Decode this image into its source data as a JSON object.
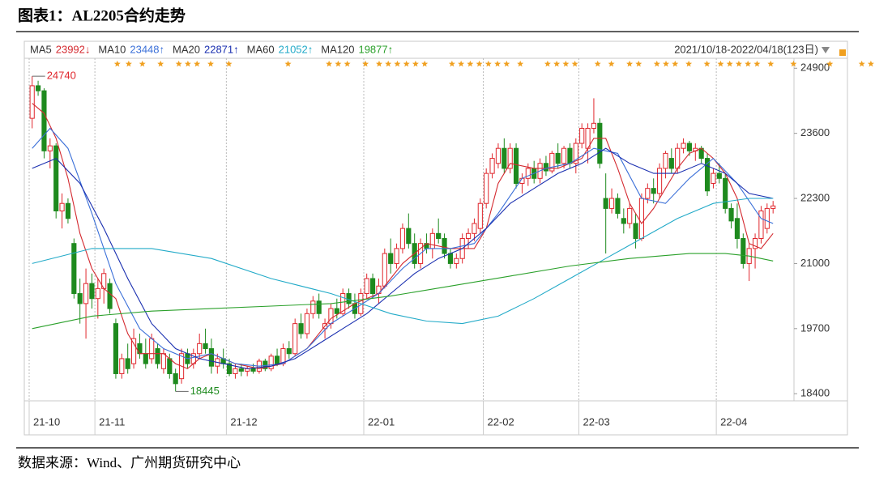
{
  "chart_data": {
    "type": "candlestick",
    "title": "图表1：AL2205合约走势",
    "source": "数据来源：Wind、广州期货研究中心",
    "date_range": "2021/10/18-2022/04/18(123日)",
    "up_color": "#e0262c",
    "down_color": "#1e8a1e",
    "ylim": [
      18290,
      25050
    ],
    "yticks": [
      18400,
      19700,
      21000,
      22300,
      23600,
      24900
    ],
    "xlim": [
      -0.5,
      127.5
    ],
    "xticks": [
      {
        "value": 0,
        "label": "21-10"
      },
      {
        "value": 11,
        "label": "21-11"
      },
      {
        "value": 33,
        "label": "21-12"
      },
      {
        "value": 56,
        "label": "22-01"
      },
      {
        "value": 76,
        "label": "22-02"
      },
      {
        "value": 92,
        "label": "22-03"
      },
      {
        "value": 115,
        "label": "22-04"
      }
    ],
    "open": [
      23900,
      24550,
      24450,
      23250,
      23350,
      22050,
      22200,
      21400,
      20400,
      20200,
      20600,
      20300,
      20500,
      20600,
      19800,
      18800,
      19100,
      19000,
      19400,
      19200,
      19100,
      19300,
      18900,
      19100,
      18800,
      18700,
      19200,
      19000,
      19200,
      19400,
      19300,
      18950,
      19100,
      19000,
      18800,
      18900,
      18850,
      18900,
      18850,
      19050,
      18900,
      19150,
      19000,
      19300,
      19200,
      19800,
      19600,
      20000,
      20250,
      19700,
      19800,
      20100,
      20000,
      20400,
      20200,
      20000,
      20400,
      20700,
      20400,
      20550,
      21200,
      21000,
      21300,
      21700,
      21400,
      21000,
      21400,
      21300,
      21600,
      21500,
      21200,
      21000,
      21100,
      21500,
      21600,
      21700,
      22200,
      22800,
      23000,
      23300,
      22900,
      23300,
      22600,
      22700,
      22900,
      22700,
      23000,
      22850,
      23200,
      23000,
      23300,
      23000,
      23400,
      23300,
      23700,
      23800,
      22300,
      22100,
      22300,
      21900,
      21800,
      21800,
      21500,
      22300,
      22500,
      22400,
      22900,
      23100,
      22900,
      23300,
      23400,
      23250,
      23300,
      23100,
      22600,
      22800,
      22700,
      22100,
      21900,
      21500,
      21000,
      21300,
      21500,
      21700,
      22100
    ],
    "high": [
      24740,
      24650,
      24500,
      23500,
      23400,
      22400,
      22300,
      21500,
      20700,
      20900,
      20800,
      20700,
      20900,
      20700,
      19900,
      19200,
      19400,
      19700,
      19600,
      19500,
      19600,
      19400,
      19300,
      19200,
      18900,
      19300,
      19300,
      19300,
      19600,
      19700,
      19500,
      19200,
      19300,
      19100,
      19000,
      19000,
      18950,
      19000,
      19100,
      19100,
      19200,
      19300,
      19400,
      19450,
      19900,
      20000,
      20100,
      20350,
      20400,
      19900,
      20200,
      20300,
      20500,
      20500,
      20400,
      20500,
      20800,
      20800,
      20700,
      21300,
      21500,
      21400,
      21800,
      22000,
      21600,
      21500,
      21600,
      21700,
      21900,
      21600,
      21300,
      21200,
      21600,
      21700,
      21900,
      22300,
      22900,
      23200,
      23400,
      23500,
      23400,
      23400,
      22800,
      23000,
      23050,
      23100,
      23150,
      23250,
      23400,
      23350,
      23400,
      23500,
      23800,
      23800,
      24300,
      23900,
      22800,
      22500,
      22400,
      22100,
      22200,
      22000,
      22400,
      22600,
      22700,
      23000,
      23250,
      23300,
      23400,
      23500,
      23450,
      23400,
      23350,
      23200,
      22900,
      23000,
      22800,
      22200,
      22200,
      21600,
      21400,
      21600,
      22150,
      22200,
      22250
    ],
    "low": [
      23700,
      24350,
      23100,
      22900,
      21900,
      21700,
      21800,
      20300,
      19800,
      19500,
      20100,
      19900,
      20200,
      20000,
      18700,
      18700,
      18800,
      18900,
      19100,
      18900,
      19000,
      18900,
      18800,
      18700,
      18445,
      18600,
      18900,
      18900,
      19100,
      19200,
      18800,
      18800,
      18900,
      18750,
      18700,
      18750,
      18750,
      18800,
      18800,
      18850,
      18850,
      18950,
      18950,
      19100,
      19150,
      19500,
      19500,
      19900,
      19900,
      19500,
      19700,
      19900,
      19950,
      20100,
      19900,
      19950,
      20300,
      20300,
      20200,
      20500,
      20800,
      20900,
      21200,
      21300,
      20900,
      20900,
      21200,
      21100,
      21400,
      21100,
      20900,
      20900,
      21000,
      21300,
      21450,
      21600,
      22100,
      22700,
      22900,
      22800,
      22800,
      22500,
      22400,
      22550,
      22600,
      22600,
      22750,
      22800,
      22900,
      22900,
      22900,
      22800,
      23300,
      23000,
      23600,
      22900,
      21200,
      22000,
      21900,
      21600,
      21700,
      21300,
      21450,
      22200,
      22200,
      22300,
      22700,
      22800,
      22800,
      23200,
      23150,
      23050,
      23000,
      22350,
      22500,
      22600,
      22000,
      21700,
      21300,
      20900,
      20650,
      20900,
      21400,
      21600,
      22000
    ],
    "close": [
      24550,
      24450,
      23250,
      23350,
      22050,
      22200,
      21900,
      20400,
      20200,
      20600,
      20300,
      20500,
      20800,
      20100,
      18800,
      19100,
      18900,
      19500,
      19200,
      19000,
      19500,
      19000,
      19200,
      18800,
      18600,
      19200,
      19000,
      19200,
      19400,
      19300,
      18950,
      19100,
      19000,
      18800,
      18900,
      18850,
      18900,
      18850,
      19050,
      18900,
      19150,
      19000,
      19300,
      19200,
      19800,
      19600,
      20000,
      20250,
      20000,
      19800,
      20100,
      20000,
      20400,
      20200,
      20000,
      20400,
      20700,
      20400,
      20550,
      21200,
      21000,
      21300,
      21700,
      21400,
      21000,
      21400,
      21300,
      21600,
      21500,
      21200,
      21000,
      21100,
      21500,
      21600,
      21800,
      22200,
      22800,
      23100,
      23300,
      22900,
      23300,
      22600,
      22700,
      22900,
      22700,
      23000,
      22850,
      23200,
      23000,
      23300,
      23000,
      23400,
      23700,
      23700,
      23800,
      23000,
      22100,
      22300,
      22000,
      21800,
      22100,
      21500,
      22300,
      22500,
      22400,
      22900,
      23200,
      22900,
      23300,
      23400,
      23250,
      23300,
      23100,
      22450,
      22800,
      22700,
      22100,
      21850,
      21500,
      21000,
      21300,
      21500,
      22050,
      22100,
      22150
    ],
    "series": [
      {
        "name": "MA5",
        "legend_value": "23992↓",
        "color": "#d42a30",
        "x": [
          0,
          2,
          4,
          6,
          8,
          10,
          12,
          14,
          16,
          18,
          20,
          22,
          24,
          26,
          28,
          30,
          34,
          38,
          42,
          46,
          50,
          54,
          58,
          62,
          66,
          70,
          74,
          76,
          78,
          80,
          84,
          88,
          92,
          94,
          96,
          98,
          100,
          102,
          104,
          106,
          108,
          110,
          112,
          114,
          116,
          118,
          120,
          122,
          124
        ],
        "values": [
          24200,
          24000,
          23500,
          22700,
          21600,
          20900,
          20500,
          20300,
          19600,
          19200,
          19200,
          19200,
          19000,
          18900,
          19100,
          19200,
          19000,
          18900,
          19000,
          19300,
          19900,
          20200,
          20400,
          21000,
          21400,
          21300,
          21300,
          21700,
          22600,
          23000,
          22900,
          22900,
          23100,
          23500,
          23500,
          22900,
          22200,
          21800,
          22100,
          22500,
          22900,
          23200,
          23300,
          23100,
          22800,
          22300,
          21400,
          21300,
          21600
        ]
      },
      {
        "name": "MA10",
        "legend_value": "23448↑",
        "color": "#3a6fd8",
        "x": [
          0,
          3,
          6,
          10,
          14,
          18,
          22,
          26,
          30,
          34,
          38,
          42,
          46,
          50,
          54,
          58,
          62,
          66,
          70,
          74,
          78,
          82,
          86,
          90,
          94,
          98,
          102,
          106,
          110,
          114,
          118,
          122,
          124
        ],
        "values": [
          23300,
          23700,
          23300,
          22000,
          20600,
          19700,
          19300,
          19100,
          19200,
          19000,
          18950,
          19000,
          19300,
          19800,
          20100,
          20400,
          20900,
          21300,
          21300,
          21400,
          22000,
          22700,
          22900,
          23000,
          23300,
          23200,
          22300,
          22200,
          22700,
          23100,
          22600,
          21900,
          21800
        ]
      },
      {
        "name": "MA20",
        "legend_value": "22871↑",
        "color": "#1a2fb0",
        "x": [
          0,
          4,
          8,
          12,
          16,
          20,
          24,
          28,
          32,
          36,
          40,
          44,
          48,
          52,
          56,
          60,
          64,
          68,
          72,
          76,
          80,
          84,
          88,
          92,
          96,
          100,
          104,
          108,
          112,
          116,
          120,
          124
        ],
        "values": [
          22900,
          23100,
          22600,
          21700,
          20700,
          19800,
          19300,
          19100,
          19000,
          18900,
          18950,
          19100,
          19400,
          19700,
          20000,
          20400,
          20800,
          21100,
          21300,
          21700,
          22200,
          22500,
          22800,
          23000,
          23300,
          23000,
          22800,
          22800,
          23000,
          22800,
          22400,
          22300
        ]
      },
      {
        "name": "MA60",
        "legend_value": "21052↑",
        "color": "#22aac8",
        "x": [
          0,
          10,
          20,
          30,
          40,
          50,
          60,
          66,
          72,
          78,
          84,
          90,
          96,
          102,
          108,
          114,
          120,
          124
        ],
        "values": [
          21000,
          21300,
          21300,
          21100,
          20700,
          20400,
          20000,
          19850,
          19800,
          19950,
          20300,
          20700,
          21100,
          21500,
          21900,
          22200,
          22300,
          22300
        ]
      },
      {
        "name": "MA120",
        "legend_value": "19877↑",
        "color": "#2aa02a",
        "x": [
          0,
          10,
          20,
          30,
          40,
          50,
          60,
          70,
          80,
          90,
          100,
          110,
          116,
          120,
          124
        ],
        "values": [
          19700,
          19950,
          20050,
          20100,
          20150,
          20200,
          20350,
          20550,
          20750,
          20950,
          21100,
          21200,
          21200,
          21150,
          21050
        ]
      }
    ]
  }
}
